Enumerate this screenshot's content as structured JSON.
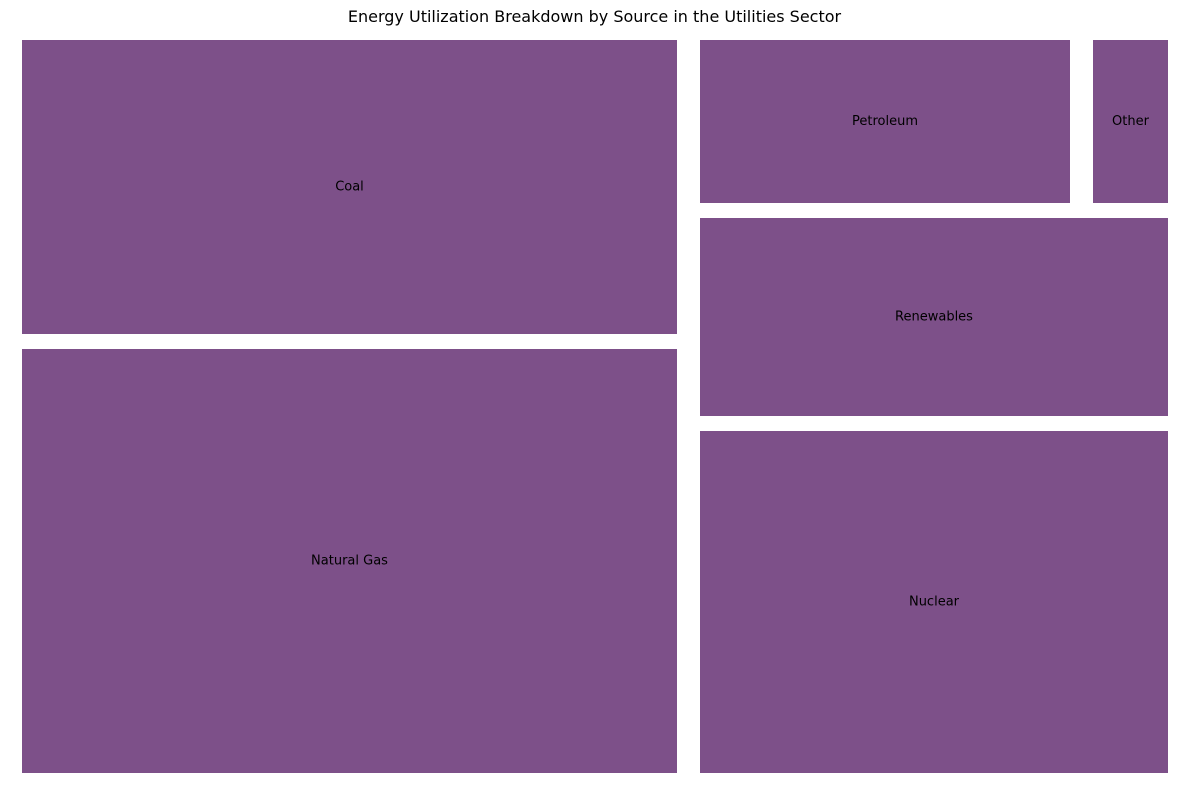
{
  "chart_data": {
    "type": "treemap",
    "title": "Energy Utilization Breakdown by Source in the Utilities Sector",
    "color": "#7d5089",
    "items": [
      {
        "label": "Coal",
        "value": 25
      },
      {
        "label": "Natural Gas",
        "value": 36
      },
      {
        "label": "Petroleum",
        "value": 8
      },
      {
        "label": "Other",
        "value": 1.6
      },
      {
        "label": "Renewables",
        "value": 12
      },
      {
        "label": "Nuclear",
        "value": 21
      }
    ]
  }
}
